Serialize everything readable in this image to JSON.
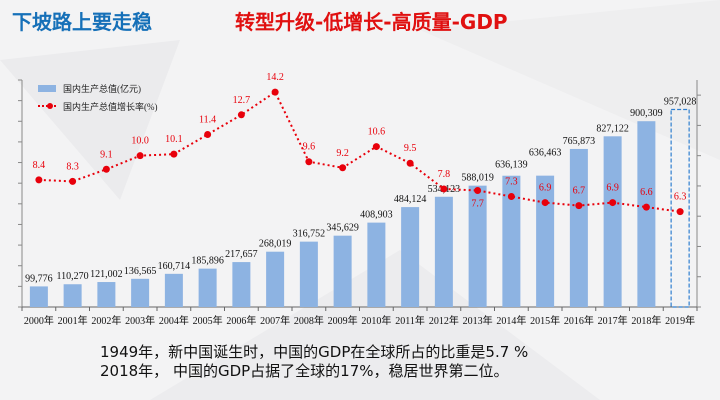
{
  "header": {
    "title_left": "下坡路上要走稳",
    "title_right": "转型升级-低增长-高质量-GDP"
  },
  "chart_data": {
    "type": "bar+line",
    "categories": [
      "2000年",
      "2001年",
      "2002年",
      "2003年",
      "2004年",
      "2005年",
      "2006年",
      "2007年",
      "2008年",
      "2009年",
      "2010年",
      "2011年",
      "2012年",
      "2013年",
      "2014年",
      "2015年",
      "2016年",
      "2017年",
      "2018年",
      "2019年"
    ],
    "series": [
      {
        "name": "国内生产总值(亿元)",
        "type": "bar",
        "color": "#8db3e2",
        "values": [
          99776,
          110270,
          121002,
          136565,
          160714,
          185896,
          217657,
          268019,
          316752,
          345629,
          408903,
          484124,
          534123,
          588019,
          636139,
          636463,
          765873,
          827122,
          900309,
          957028
        ],
        "labels": [
          "99,776",
          "110,270",
          "121,002",
          "136,565",
          "160,714",
          "185,896",
          "217,657",
          "268,019",
          "316,752",
          "345,629",
          "408,903",
          "484,124",
          "534,123",
          "588,019",
          "636,139",
          "636,463",
          "765,873",
          "827,122",
          "900,309",
          "957,028"
        ],
        "note": "2019 bar drawn as dashed outline"
      },
      {
        "name": "国内生产总值增长率(%)",
        "type": "line",
        "color": "#e8000b",
        "values": [
          8.4,
          8.3,
          9.1,
          10.0,
          10.1,
          11.4,
          12.7,
          14.2,
          9.6,
          9.2,
          10.6,
          9.5,
          7.8,
          7.7,
          7.3,
          6.9,
          6.7,
          6.9,
          6.6,
          6.3
        ],
        "labels": [
          "8.4",
          "8.3",
          "9.1",
          "10.0",
          "10.1",
          "11.4",
          "12.7",
          "14.2",
          "9.6",
          "9.2",
          "10.6",
          "9.5",
          "7.8",
          "7.7",
          "7.3",
          "6.9",
          "6.7",
          "6.9",
          "6.6",
          "6.3"
        ]
      }
    ],
    "ylim_left": [
      0,
      1100000
    ],
    "ylim_right": [
      0,
      15
    ],
    "legend": "top-left"
  },
  "caption": {
    "line1": "1949年，新中国诞生时，中国的GDP在全球所占的比重是5.7 %",
    "line2": "2018年，  中国的GDP占据了全球的17%，稳居世界第二位。"
  }
}
